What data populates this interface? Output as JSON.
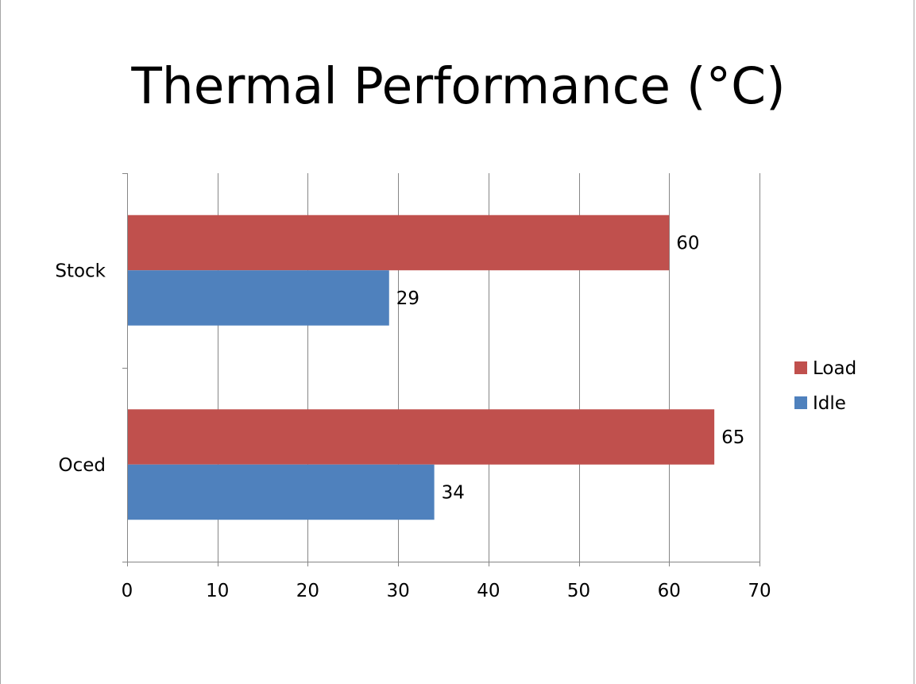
{
  "chart_data": {
    "type": "bar",
    "orientation": "horizontal",
    "title": "Thermal Performance (°C)",
    "categories": [
      "Stock",
      "Oced"
    ],
    "series": [
      {
        "name": "Load",
        "values": [
          60,
          65
        ],
        "color": "#c0504d"
      },
      {
        "name": "Idle",
        "values": [
          29,
          34
        ],
        "color": "#4f81bd"
      }
    ],
    "xlim": [
      0,
      70
    ],
    "xticks": [
      0,
      10,
      20,
      30,
      40,
      50,
      60,
      70
    ],
    "grid": true,
    "legend": "right",
    "data_labels": true
  }
}
